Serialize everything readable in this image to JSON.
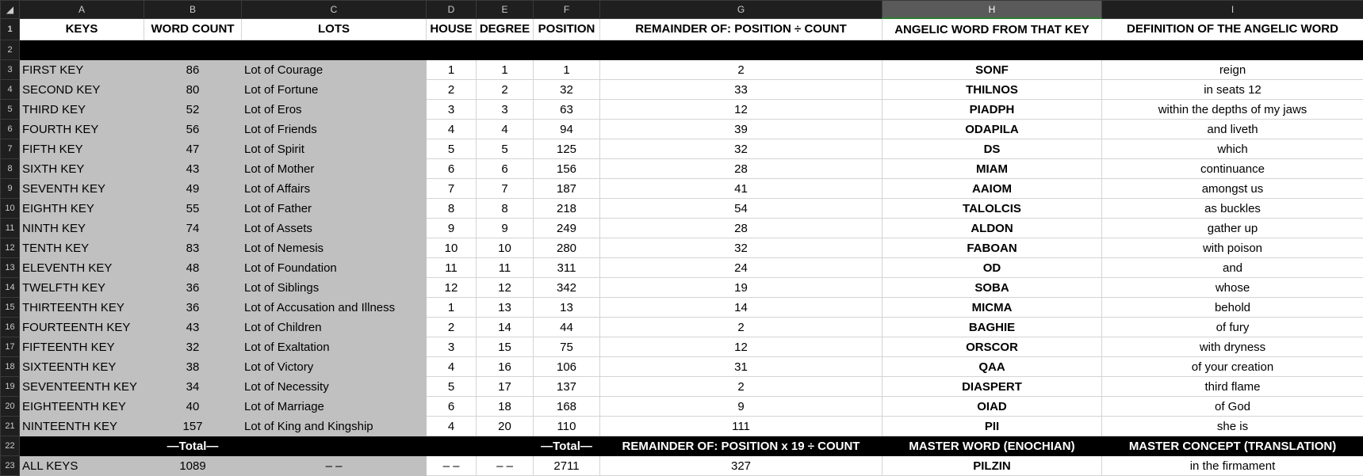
{
  "columns": [
    "A",
    "B",
    "C",
    "D",
    "E",
    "F",
    "G",
    "H",
    "I"
  ],
  "headers": [
    "KEYS",
    "WORD COUNT",
    "LOTS",
    "HOUSE",
    "DEGREE",
    "POSITION",
    "REMAINDER OF: POSITION ÷ COUNT",
    "ANGELIC WORD FROM THAT KEY",
    "DEFINITION OF THE ANGELIC WORD"
  ],
  "rows": [
    [
      "FIRST KEY",
      "86",
      "Lot of Courage",
      "1",
      "1",
      "1",
      "2",
      "SONF",
      "reign"
    ],
    [
      "SECOND KEY",
      "80",
      "Lot of Fortune",
      "2",
      "2",
      "32",
      "33",
      "THILNOS",
      "in seats 12"
    ],
    [
      "THIRD KEY",
      "52",
      "Lot of Eros",
      "3",
      "3",
      "63",
      "12",
      "PIADPH",
      "within the depths of my jaws"
    ],
    [
      "FOURTH KEY",
      "56",
      "Lot of Friends",
      "4",
      "4",
      "94",
      "39",
      "ODAPILA",
      "and liveth"
    ],
    [
      "FIFTH KEY",
      "47",
      "Lot of Spirit",
      "5",
      "5",
      "125",
      "32",
      "DS",
      "which"
    ],
    [
      "SIXTH KEY",
      "43",
      "Lot of Mother",
      "6",
      "6",
      "156",
      "28",
      "MIAM",
      "continuance"
    ],
    [
      "SEVENTH KEY",
      "49",
      "Lot of Affairs",
      "7",
      "7",
      "187",
      "41",
      "AAIOM",
      "amongst us"
    ],
    [
      "EIGHTH KEY",
      "55",
      "Lot of Father",
      "8",
      "8",
      "218",
      "54",
      "TALOLCIS",
      "as buckles"
    ],
    [
      "NINTH KEY",
      "74",
      "Lot of Assets",
      "9",
      "9",
      "249",
      "28",
      "ALDON",
      "gather up"
    ],
    [
      "TENTH KEY",
      "83",
      "Lot of Nemesis",
      "10",
      "10",
      "280",
      "32",
      "FABOAN",
      "with poison"
    ],
    [
      "ELEVENTH KEY",
      "48",
      "Lot of Foundation",
      "11",
      "11",
      "311",
      "24",
      "OD",
      "and"
    ],
    [
      "TWELFTH KEY",
      "36",
      "Lot of Siblings",
      "12",
      "12",
      "342",
      "19",
      "SOBA",
      "whose"
    ],
    [
      "THIRTEENTH KEY",
      "36",
      "Lot of Accusation and Illness",
      "1",
      "13",
      "13",
      "14",
      "MICMA",
      "behold"
    ],
    [
      "FOURTEENTH KEY",
      "43",
      "Lot of Children",
      "2",
      "14",
      "44",
      "2",
      "BAGHIE",
      "of fury"
    ],
    [
      "FIFTEENTH KEY",
      "32",
      "Lot of Exaltation",
      "3",
      "15",
      "75",
      "12",
      "ORSCOR",
      "with dryness"
    ],
    [
      "SIXTEENTH KEY",
      "38",
      "Lot of Victory",
      "4",
      "16",
      "106",
      "31",
      "QAA",
      "of your creation"
    ],
    [
      "SEVENTEENTH KEY",
      "34",
      "Lot of Necessity",
      "5",
      "17",
      "137",
      "2",
      "DIASPERT",
      "third flame"
    ],
    [
      "EIGHTEENTH KEY",
      "40",
      "Lot of Marriage",
      "6",
      "18",
      "168",
      "9",
      "OIAD",
      "of God"
    ],
    [
      "NINTEENTH KEY",
      "157",
      "Lot of King and Kingship",
      "4",
      "20",
      "110",
      "111",
      "PII",
      "she is"
    ]
  ],
  "total_row": [
    "",
    "—Total—",
    "",
    "",
    "",
    "—Total—",
    "REMAINDER OF: POSITION x 19 ÷ COUNT",
    "MASTER WORD (ENOCHIAN)",
    "MASTER CONCEPT (TRANSLATION)"
  ],
  "all_row": [
    "ALL KEYS",
    "1089",
    "– –",
    "– –",
    "– –",
    "2711",
    "327",
    "PILZIN",
    "in the firmament"
  ]
}
